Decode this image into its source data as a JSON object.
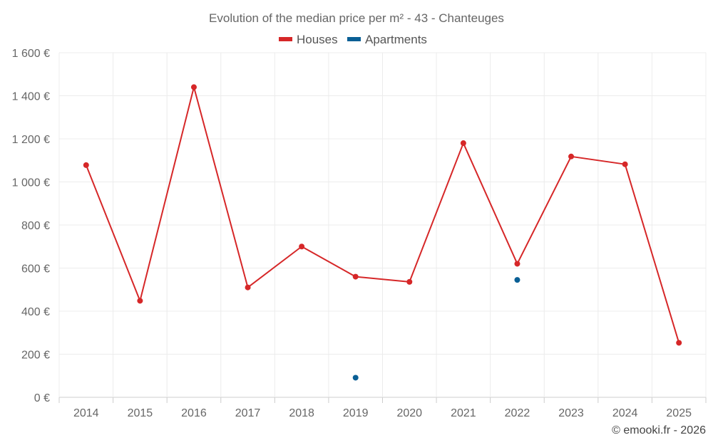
{
  "chart_data": {
    "type": "line",
    "title": "Evolution of the median price per m² - 43 - Chanteuges",
    "categories": [
      "2014",
      "2015",
      "2016",
      "2017",
      "2018",
      "2019",
      "2020",
      "2021",
      "2022",
      "2023",
      "2024",
      "2025"
    ],
    "series": [
      {
        "name": "Houses",
        "color": "#d62728",
        "values": [
          1078,
          448,
          1440,
          510,
          700,
          560,
          536,
          1180,
          620,
          1118,
          1082,
          253
        ]
      },
      {
        "name": "Apartments",
        "color": "#0a5f95",
        "values": [
          null,
          null,
          null,
          null,
          null,
          91,
          null,
          null,
          545,
          null,
          null,
          null
        ]
      }
    ],
    "ylim": [
      0,
      1600
    ],
    "yticks": [
      0,
      200,
      400,
      600,
      800,
      1000,
      1200,
      1400,
      1600
    ],
    "ytick_labels": [
      "0 €",
      "200 €",
      "400 €",
      "600 €",
      "800 €",
      "1 000 €",
      "1 200 €",
      "1 400 €",
      "1 600 €"
    ],
    "xlabel": "",
    "ylabel": "",
    "grid": true,
    "legend_position": "top-center"
  },
  "footer": {
    "credit": "© emooki.fr - 2026"
  }
}
